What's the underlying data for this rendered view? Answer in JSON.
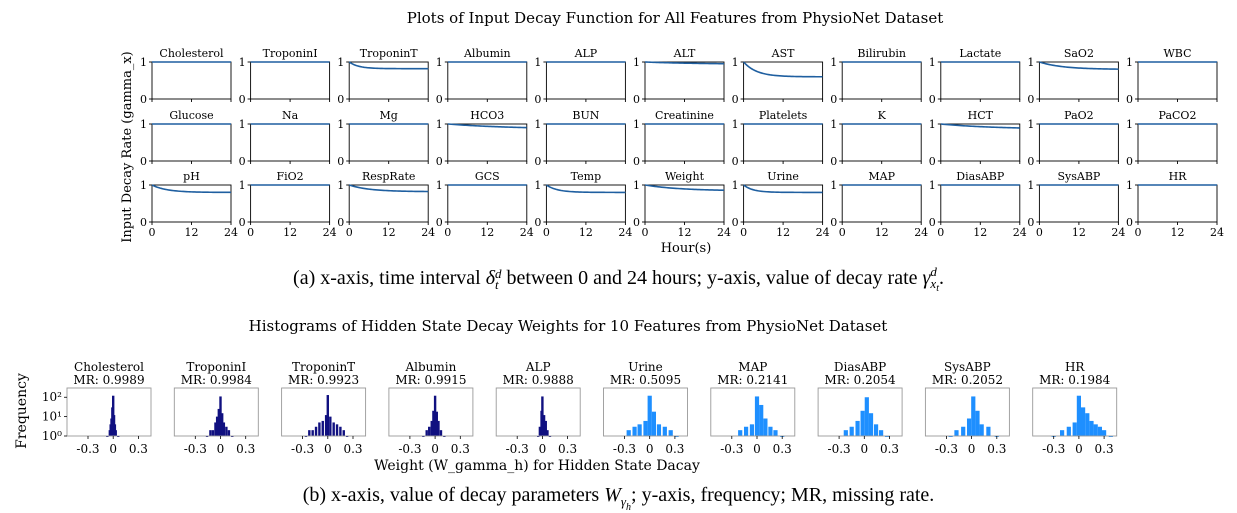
{
  "colors": {
    "line": "#1f5fa0",
    "hist_dark": "#101080",
    "hist_light": "#1e8fff",
    "axis": "#000000",
    "spine": "#999999"
  },
  "chart_data": [
    {
      "type": "line",
      "title": "Plots of Input Decay Function for All Features from PhysioNet Dataset",
      "xlabel": "Hour(s)",
      "ylabel": "Input Decay Rate (gamma_x)",
      "xlim": [
        0,
        24
      ],
      "ylim": [
        0,
        1
      ],
      "xticks": [
        "0",
        "12",
        "24"
      ],
      "yticks": [
        "0",
        "1"
      ],
      "panels": [
        {
          "name": "Cholesterol",
          "end": 1.0,
          "k": 0.2
        },
        {
          "name": "TroponinI",
          "end": 1.0,
          "k": 0.2
        },
        {
          "name": "TroponinT",
          "end": 0.82,
          "k": 0.35
        },
        {
          "name": "Albumin",
          "end": 1.0,
          "k": 0.2
        },
        {
          "name": "ALP",
          "end": 1.0,
          "k": 0.2
        },
        {
          "name": "ALT",
          "end": 0.94,
          "k": 0.06
        },
        {
          "name": "AST",
          "end": 0.6,
          "k": 0.25
        },
        {
          "name": "Bilirubin",
          "end": 1.0,
          "k": 0.2
        },
        {
          "name": "Lactate",
          "end": 1.0,
          "k": 0.2
        },
        {
          "name": "SaO2",
          "end": 0.8,
          "k": 0.14
        },
        {
          "name": "WBC",
          "end": 1.0,
          "k": 0.2
        },
        {
          "name": "Glucose",
          "end": 1.0,
          "k": 0.2
        },
        {
          "name": "Na",
          "end": 1.0,
          "k": 0.2
        },
        {
          "name": "Mg",
          "end": 1.0,
          "k": 0.2
        },
        {
          "name": "HCO3",
          "end": 0.86,
          "k": 0.05
        },
        {
          "name": "BUN",
          "end": 1.0,
          "k": 0.2
        },
        {
          "name": "Creatinine",
          "end": 1.0,
          "k": 0.2
        },
        {
          "name": "Platelets",
          "end": 1.0,
          "k": 0.2
        },
        {
          "name": "K",
          "end": 1.0,
          "k": 0.2
        },
        {
          "name": "HCT",
          "end": 0.86,
          "k": 0.06
        },
        {
          "name": "PaO2",
          "end": 1.0,
          "k": 0.2
        },
        {
          "name": "PaCO2",
          "end": 1.0,
          "k": 0.2
        },
        {
          "name": "pH",
          "end": 0.8,
          "k": 0.22
        },
        {
          "name": "FiO2",
          "end": 1.0,
          "k": 0.2
        },
        {
          "name": "RespRate",
          "end": 0.82,
          "k": 0.16
        },
        {
          "name": "GCS",
          "end": 1.0,
          "k": 0.2
        },
        {
          "name": "Temp",
          "end": 0.8,
          "k": 0.3
        },
        {
          "name": "Weight",
          "end": 0.84,
          "k": 0.09
        },
        {
          "name": "Urine",
          "end": 0.8,
          "k": 0.35
        },
        {
          "name": "MAP",
          "end": 1.0,
          "k": 0.2
        },
        {
          "name": "DiasABP",
          "end": 1.0,
          "k": 0.2
        },
        {
          "name": "SysABP",
          "end": 1.0,
          "k": 0.2
        },
        {
          "name": "HR",
          "end": 1.0,
          "k": 0.2
        }
      ]
    },
    {
      "type": "histogram",
      "title": "Histograms of Hidden State Decay Weights for 10 Features from PhysioNet Dataset",
      "xlabel": "Weight (W_gamma_h) for Hidden State Dacay",
      "ylabel": "Frequency",
      "xlim": [
        -0.55,
        0.45
      ],
      "yscale": "log",
      "ylim": [
        1,
        300
      ],
      "xticks": [
        {
          "v": -0.3,
          "label": "-0.3"
        },
        {
          "v": 0,
          "label": "0"
        },
        {
          "v": 0.3,
          "label": "0.3"
        }
      ],
      "yticks": [
        {
          "v": 1,
          "label": "10⁰"
        },
        {
          "v": 10,
          "label": "10¹"
        },
        {
          "v": 100,
          "label": "10²"
        }
      ],
      "panels": [
        {
          "name": "Cholesterol",
          "mr_label": "MR: 0.9989",
          "color": "dark",
          "bins": [
            [
              -0.07,
              1
            ],
            [
              -0.04,
              2
            ],
            [
              -0.03,
              4
            ],
            [
              -0.02,
              8
            ],
            [
              -0.01,
              30
            ],
            [
              0.0,
              120
            ],
            [
              0.01,
              12
            ],
            [
              0.02,
              4
            ],
            [
              0.03,
              2
            ],
            [
              0.06,
              1
            ]
          ]
        },
        {
          "name": "TroponinI",
          "mr_label": "MR: 0.9984",
          "color": "dark",
          "bins": [
            [
              -0.16,
              1
            ],
            [
              -0.12,
              2
            ],
            [
              -0.09,
              2
            ],
            [
              -0.06,
              5
            ],
            [
              -0.04,
              10
            ],
            [
              -0.02,
              25
            ],
            [
              0.0,
              110
            ],
            [
              0.02,
              15
            ],
            [
              0.04,
              5
            ],
            [
              0.07,
              3
            ],
            [
              0.1,
              2
            ],
            [
              0.14,
              1
            ]
          ]
        },
        {
          "name": "TroponinT",
          "mr_label": "MR: 0.9923",
          "color": "dark",
          "bins": [
            [
              -0.26,
              1
            ],
            [
              -0.22,
              2
            ],
            [
              -0.18,
              2
            ],
            [
              -0.14,
              3
            ],
            [
              -0.1,
              5
            ],
            [
              -0.06,
              6
            ],
            [
              -0.02,
              12
            ],
            [
              0.0,
              130
            ],
            [
              0.03,
              10
            ],
            [
              0.07,
              5
            ],
            [
              0.11,
              4
            ],
            [
              0.15,
              3
            ],
            [
              0.19,
              2
            ],
            [
              0.23,
              1
            ]
          ]
        },
        {
          "name": "Albumin",
          "mr_label": "MR: 0.9915",
          "color": "dark",
          "bins": [
            [
              -0.14,
              1
            ],
            [
              -0.1,
              2
            ],
            [
              -0.07,
              3
            ],
            [
              -0.04,
              6
            ],
            [
              -0.02,
              20
            ],
            [
              0.0,
              120
            ],
            [
              0.02,
              18
            ],
            [
              0.04,
              6
            ],
            [
              0.07,
              2
            ],
            [
              0.11,
              1
            ]
          ]
        },
        {
          "name": "ALP",
          "mr_label": "MR: 0.9888",
          "color": "dark",
          "bins": [
            [
              -0.05,
              1
            ],
            [
              -0.03,
              3
            ],
            [
              -0.01,
              20
            ],
            [
              0.0,
              110
            ],
            [
              0.02,
              12
            ],
            [
              0.04,
              6
            ],
            [
              0.06,
              2
            ],
            [
              0.09,
              1
            ]
          ]
        },
        {
          "name": "Urine",
          "mr_label": "MR: 0.5095",
          "color": "light",
          "bins": [
            [
              -0.25,
              2
            ],
            [
              -0.18,
              3
            ],
            [
              -0.12,
              4
            ],
            [
              -0.05,
              6
            ],
            [
              0.0,
              120
            ],
            [
              0.05,
              18
            ],
            [
              0.11,
              4
            ],
            [
              0.18,
              3
            ],
            [
              0.25,
              2
            ],
            [
              0.32,
              1
            ]
          ]
        },
        {
          "name": "MAP",
          "mr_label": "MR: 0.2141",
          "color": "light",
          "bins": [
            [
              -0.2,
              2
            ],
            [
              -0.13,
              3
            ],
            [
              -0.06,
              4
            ],
            [
              0.0,
              110
            ],
            [
              0.05,
              40
            ],
            [
              0.1,
              8
            ],
            [
              0.16,
              3
            ],
            [
              0.22,
              2
            ],
            [
              0.3,
              1
            ]
          ]
        },
        {
          "name": "DiasABP",
          "mr_label": "MR: 0.2054",
          "color": "light",
          "bins": [
            [
              -0.22,
              2
            ],
            [
              -0.15,
              3
            ],
            [
              -0.08,
              6
            ],
            [
              -0.02,
              20
            ],
            [
              0.03,
              100
            ],
            [
              0.08,
              15
            ],
            [
              0.14,
              4
            ],
            [
              0.2,
              2
            ],
            [
              0.27,
              1
            ]
          ]
        },
        {
          "name": "SysABP",
          "mr_label": "MR: 0.2052",
          "color": "light",
          "bins": [
            [
              -0.25,
              1
            ],
            [
              -0.18,
              2
            ],
            [
              -0.1,
              3
            ],
            [
              -0.03,
              8
            ],
            [
              0.02,
              110
            ],
            [
              0.07,
              20
            ],
            [
              0.12,
              4
            ],
            [
              0.2,
              3
            ],
            [
              0.3,
              1
            ]
          ]
        },
        {
          "name": "HR",
          "mr_label": "MR: 0.1984",
          "color": "light",
          "bins": [
            [
              -0.3,
              1
            ],
            [
              -0.2,
              2
            ],
            [
              -0.12,
              3
            ],
            [
              -0.05,
              5
            ],
            [
              0.0,
              120
            ],
            [
              0.05,
              30
            ],
            [
              0.1,
              15
            ],
            [
              0.15,
              6
            ],
            [
              0.2,
              4
            ],
            [
              0.25,
              3
            ],
            [
              0.3,
              2
            ],
            [
              0.38,
              1
            ]
          ]
        }
      ]
    }
  ],
  "captions": {
    "a_prefix": "(a) x-axis, time interval ",
    "a_sym1": "δ",
    "a_sub1": "t",
    "a_sup1": "d",
    "a_mid": " between 0 and 24 hours; y-axis, value of decay rate ",
    "a_sym2": "γ",
    "a_sub2": "x",
    "a_subsub2": "t",
    "a_sup2": "d",
    "a_end": ".",
    "b_prefix": "(b) x-axis, value of decay parameters ",
    "b_sym": "W",
    "b_sub": "γ",
    "b_subsub": "h",
    "b_end": "; y-axis, frequency; MR, missing rate."
  }
}
